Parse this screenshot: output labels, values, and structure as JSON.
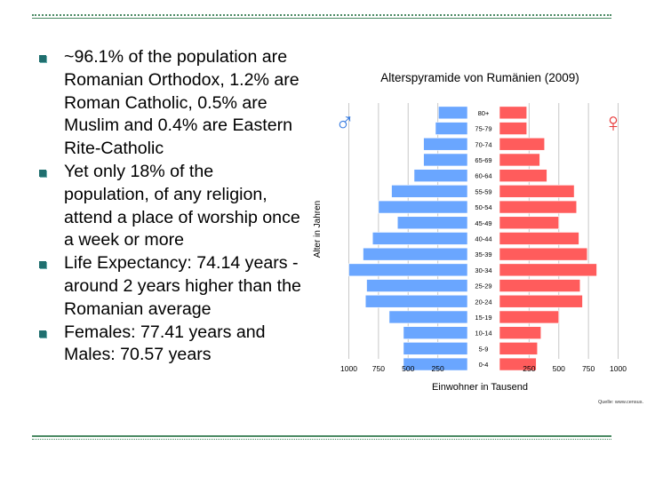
{
  "bullets": [
    "~96.1% of the population are Romanian Orthodox, 1.2% are Roman Catholic, 0.5% are Muslim and 0.4% are Eastern Rite-Catholic",
    "Yet only 18% of the population, of any religion, attend a place of worship once a week or more",
    "Life Expectancy: 74.14 years -around 2 years higher than the Romanian average",
    "Females: 77.41 years  and Males: 70.57 years"
  ],
  "colors": {
    "male_bar": "#6aa6ff",
    "female_bar": "#ff5c5c",
    "male_symbol": "#3a7de0",
    "female_symbol": "#e83a3a",
    "bullet": "#1f6e6e",
    "rule": "#4a8a63"
  },
  "chart_data": {
    "type": "bar",
    "orientation": "horizontal-pyramid",
    "title": "Alterspyramide von Rumänien (2009)",
    "ylabel": "Alter in Jahren",
    "xlabel": "Einwohner in Tausend",
    "source": "Quelle: www.census.",
    "male_symbol": "♂",
    "female_symbol": "♀",
    "categories": [
      "80+",
      "75-79",
      "70-74",
      "65-69",
      "60-64",
      "55-59",
      "50-54",
      "45-49",
      "40-44",
      "35-39",
      "30-34",
      "25-29",
      "20-24",
      "15-19",
      "10-14",
      "5-9",
      "0-4"
    ],
    "series": [
      {
        "values": [
          245,
          270,
          370,
          370,
          450,
          640,
          750,
          590,
          800,
          880,
          1000,
          850,
          860,
          660,
          540,
          540,
          540
        ]
      },
      {
        "values": [
          230,
          230,
          380,
          340,
          400,
          630,
          650,
          500,
          670,
          740,
          820,
          680,
          700,
          500,
          350,
          320,
          310
        ]
      }
    ],
    "xticks_left": [
      "1000",
      "750",
      "500",
      "250"
    ],
    "xticks_right": [
      "250",
      "500",
      "750",
      "1000"
    ],
    "xlim": [
      0,
      1000
    ],
    "grid": true
  }
}
